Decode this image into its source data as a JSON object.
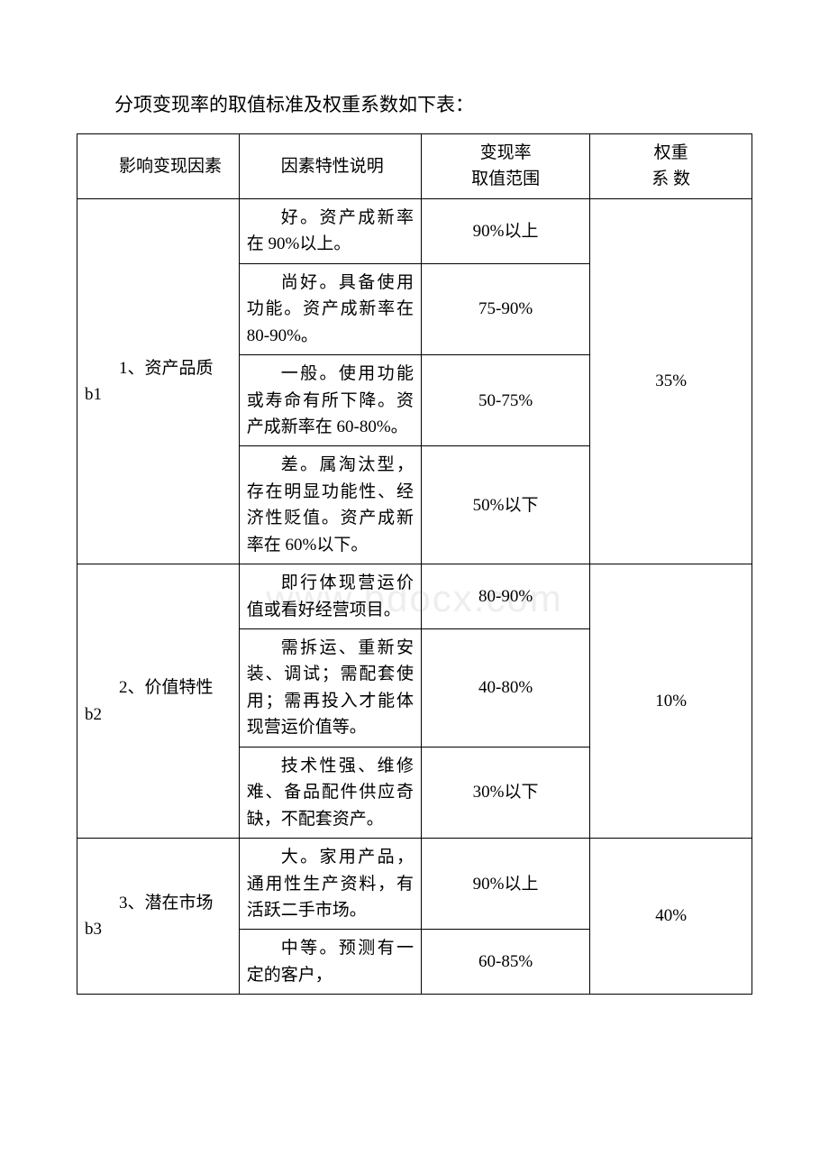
{
  "title": "分项变现率的取值标准及权重系数如下表：",
  "watermark": "www.bdocx.com",
  "headers": {
    "factor": "影响变现因素",
    "desc": "因素特性说明",
    "rate_line1": "变现率",
    "rate_line2": "取值范围",
    "weight_line1": "权重",
    "weight_line2": "系 数"
  },
  "groups": [
    {
      "factor": "1、资产品质 b1",
      "weight": "35%",
      "rows": [
        {
          "desc": "好。资产成新率在 90%以上。",
          "rate": "90%以上"
        },
        {
          "desc": "尚好。具备使用功能。资产成新率在 80-90%。",
          "rate": "75-90%"
        },
        {
          "desc": "一般。使用功能或寿命有所下降。资产成新率在 60-80%。",
          "rate": "50-75%"
        },
        {
          "desc": "差。属淘汰型，存在明显功能性、经济性贬值。资产成新率在 60%以下。",
          "rate": "50%以下"
        }
      ]
    },
    {
      "factor": "2、价值特性 b2",
      "weight": "10%",
      "rows": [
        {
          "desc": "即行体现营运价值或看好经营项目。",
          "rate": "80-90%"
        },
        {
          "desc": "需拆运、重新安装、调试；需配套使用；需再投入才能体现营运价值等。",
          "rate": "40-80%"
        },
        {
          "desc": "技术性强、维修难、备品配件供应奇缺，不配套资产。",
          "rate": "30%以下"
        }
      ]
    },
    {
      "factor": "3、潜在市场 b3",
      "weight": "40%",
      "rows": [
        {
          "desc": "大。家用产品，通用性生产资料，有活跃二手市场。",
          "rate": "90%以上"
        },
        {
          "desc": "中等。预测有一定的客户，",
          "rate": "60-85%"
        }
      ]
    }
  ]
}
